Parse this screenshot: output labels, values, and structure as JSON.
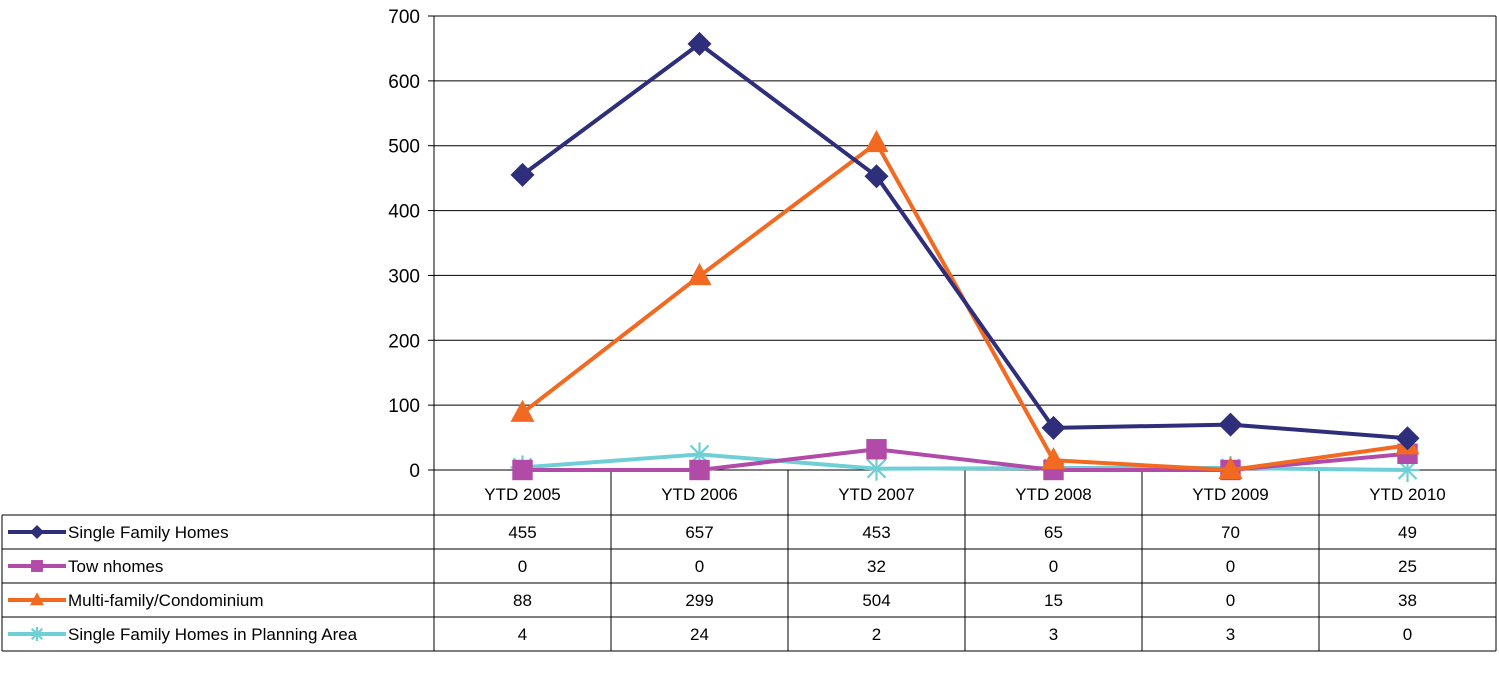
{
  "chart_data": {
    "type": "line",
    "title": "",
    "xlabel": "",
    "ylabel": "",
    "ylim": [
      0,
      700
    ],
    "yticks": [
      0,
      100,
      200,
      300,
      400,
      500,
      600,
      700
    ],
    "grid": true,
    "legend": "data-table",
    "categories": [
      "YTD 2005",
      "YTD 2006",
      "YTD 2007",
      "YTD 2008",
      "YTD 2009",
      "YTD 2010"
    ],
    "series": [
      {
        "name": "Single Family Homes",
        "values": [
          455,
          657,
          453,
          65,
          70,
          49
        ],
        "color": "#2e2e7a",
        "marker": "diamond"
      },
      {
        "name": "Tow nhomes",
        "values": [
          0,
          0,
          32,
          0,
          0,
          25
        ],
        "color": "#b24aa7",
        "marker": "square"
      },
      {
        "name": "Multi-family/Condominium",
        "values": [
          88,
          299,
          504,
          15,
          0,
          38
        ],
        "color": "#f26a22",
        "marker": "triangle"
      },
      {
        "name": "Single Family Homes in Planning Area",
        "values": [
          4,
          24,
          2,
          3,
          3,
          0
        ],
        "color": "#6fcfd6",
        "marker": "asterisk"
      }
    ]
  }
}
